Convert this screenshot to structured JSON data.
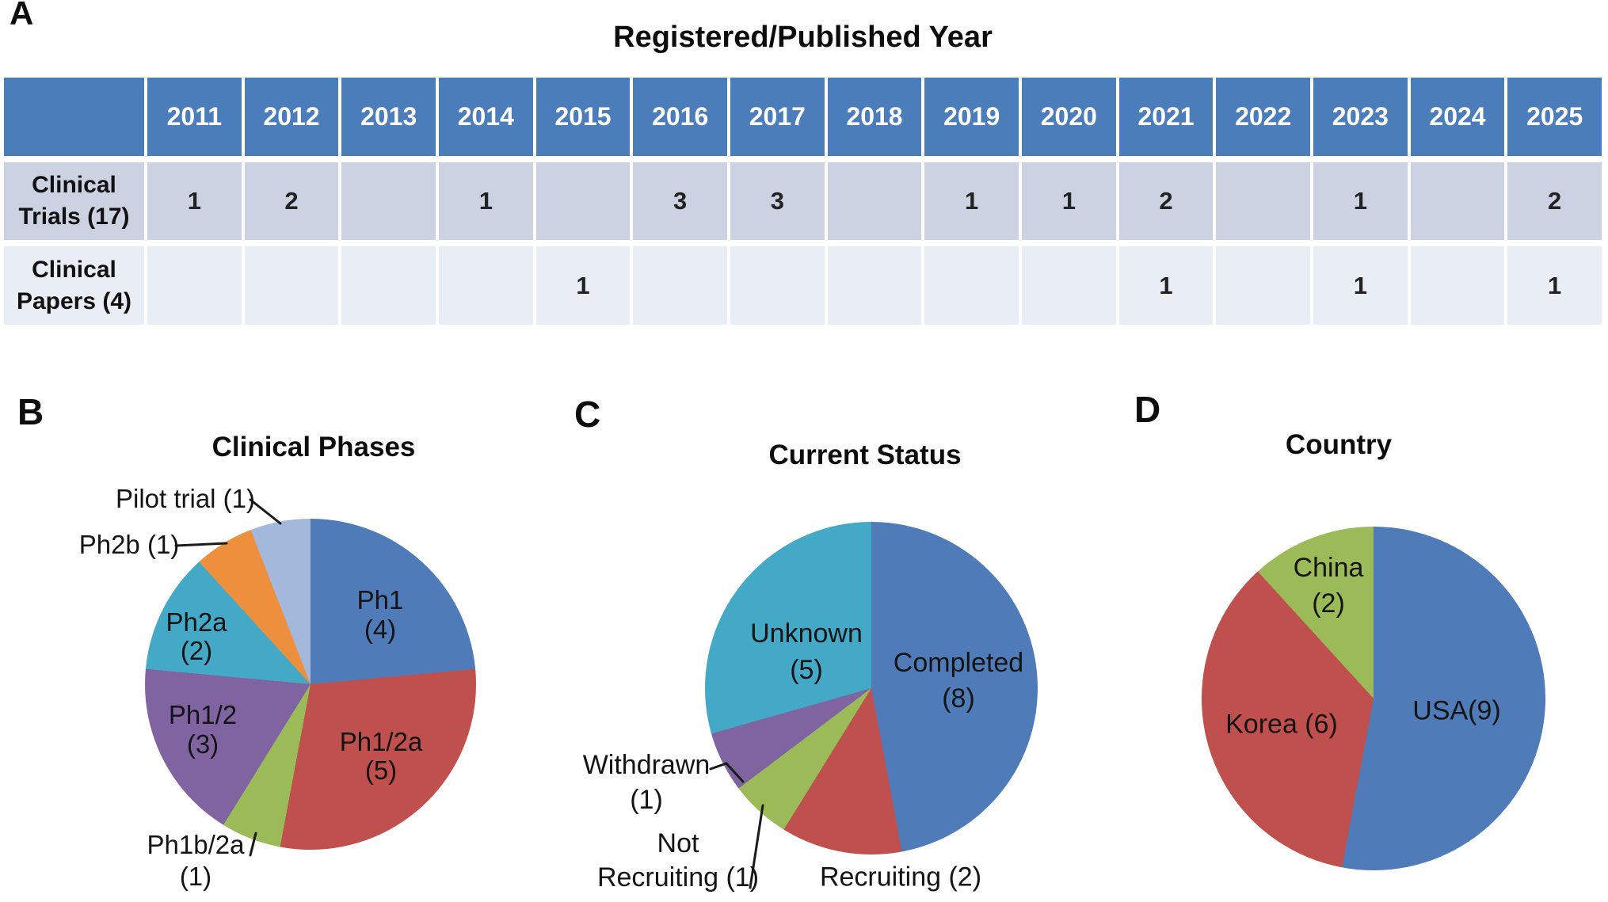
{
  "figure": {
    "background": "#ffffff",
    "panels": [
      {
        "letter": "A",
        "type": "table"
      },
      {
        "letter": "B",
        "type": "pie"
      },
      {
        "letter": "C",
        "type": "pie"
      },
      {
        "letter": "D",
        "type": "pie"
      }
    ]
  },
  "chart_data": [
    {
      "type": "table",
      "title": "Registered/Published Year",
      "columns": [
        "2011",
        "2012",
        "2013",
        "2014",
        "2015",
        "2016",
        "2017",
        "2018",
        "2019",
        "2020",
        "2021",
        "2022",
        "2023",
        "2024",
        "2025"
      ],
      "rows": [
        {
          "label": "Clinical Trials (17)",
          "label_lines": [
            "Clinical",
            "Trials (17)"
          ],
          "total": 17,
          "values": [
            "1",
            "2",
            "",
            "1",
            "",
            "3",
            "3",
            "",
            "1",
            "1",
            "2",
            "",
            "1",
            "",
            "2"
          ]
        },
        {
          "label": "Clinical Papers (4)",
          "label_lines": [
            "Clinical",
            "Papers (4)"
          ],
          "total": 4,
          "values": [
            "",
            "",
            "",
            "",
            "1",
            "",
            "",
            "",
            "",
            "",
            "1",
            "",
            "1",
            "",
            "1"
          ]
        }
      ],
      "header_bg": "#4a7dba",
      "row_bg": [
        "#cdd2e3",
        "#e9edf5"
      ],
      "header_text_color": "#ffffff"
    },
    {
      "type": "pie",
      "title": "Clinical Phases",
      "total": 17,
      "start_angle_deg": 0,
      "direction": "clockwise",
      "legend_position": "none",
      "slices": [
        {
          "label": "Ph1",
          "value": 4,
          "color": "#4f7cb8",
          "label_placement": "inside",
          "text_lines": [
            "Ph1",
            "(4)"
          ]
        },
        {
          "label": "Ph1/2a",
          "value": 5,
          "color": "#c0504d",
          "label_placement": "inside",
          "text_lines": [
            "Ph1/2a",
            "(5)"
          ]
        },
        {
          "label": "Ph1b/2a",
          "value": 1,
          "color": "#9bbb59",
          "label_placement": "outside",
          "text_lines": [
            "Ph1b/2a",
            "(1)"
          ]
        },
        {
          "label": "Ph1/2",
          "value": 3,
          "color": "#8064a2",
          "label_placement": "inside",
          "text_lines": [
            "Ph1/2",
            "(3)"
          ]
        },
        {
          "label": "Ph2a",
          "value": 2,
          "color": "#43a9c7",
          "label_placement": "inside",
          "text_lines": [
            "Ph2a",
            "(2)"
          ]
        },
        {
          "label": "Ph2b",
          "value": 1,
          "color": "#ee8f3d",
          "label_placement": "outside",
          "text_lines": [
            "Ph2b (1)"
          ]
        },
        {
          "label": "Pilot trial",
          "value": 1,
          "color": "#a3b8db",
          "label_placement": "outside",
          "text_lines": [
            "Pilot trial (1)"
          ]
        }
      ]
    },
    {
      "type": "pie",
      "title": "Current Status",
      "total": 17,
      "start_angle_deg": 0,
      "direction": "clockwise",
      "legend_position": "none",
      "slices": [
        {
          "label": "Completed",
          "value": 8,
          "color": "#4f7cb8",
          "label_placement": "inside",
          "text_lines": [
            "Completed",
            "(8)"
          ]
        },
        {
          "label": "Recruiting",
          "value": 2,
          "color": "#c0504d",
          "label_placement": "outside",
          "text_lines": [
            "Recruiting (2)"
          ]
        },
        {
          "label": "Not Recruiting",
          "value": 1,
          "color": "#9bbb59",
          "label_placement": "outside",
          "text_lines": [
            "Not",
            "Recruiting (1)"
          ]
        },
        {
          "label": "Withdrawn",
          "value": 1,
          "color": "#8064a2",
          "label_placement": "outside",
          "text_lines": [
            "Withdrawn",
            "(1)"
          ]
        },
        {
          "label": "Unknown",
          "value": 5,
          "color": "#43a9c7",
          "label_placement": "inside",
          "text_lines": [
            "Unknown",
            "(5)"
          ]
        }
      ]
    },
    {
      "type": "pie",
      "title": "Country",
      "total": 17,
      "start_angle_deg": 0,
      "direction": "clockwise",
      "legend_position": "none",
      "slices": [
        {
          "label": "USA",
          "value": 9,
          "color": "#4f7cb8",
          "label_placement": "inside",
          "text_lines": [
            "USA(9)"
          ]
        },
        {
          "label": "Korea",
          "value": 6,
          "color": "#c0504d",
          "label_placement": "inside",
          "text_lines": [
            "Korea (6)"
          ]
        },
        {
          "label": "China",
          "value": 2,
          "color": "#9bbb59",
          "label_placement": "inside",
          "text_lines": [
            "China",
            "(2)"
          ]
        }
      ]
    }
  ],
  "colors": {
    "table_header_bg": "#4a7dba",
    "table_row1_bg": "#cdd2e3",
    "table_row2_bg": "#e9edf5",
    "pie_blue": "#4f7cb8",
    "pie_red": "#c0504d",
    "pie_green": "#9bbb59",
    "pie_purple": "#8064a2",
    "pie_teal": "#43a9c7",
    "pie_orange": "#ee8f3d",
    "pie_lightblue": "#a3b8db",
    "leader_line": "#1b1b1b",
    "text": "#141414"
  }
}
